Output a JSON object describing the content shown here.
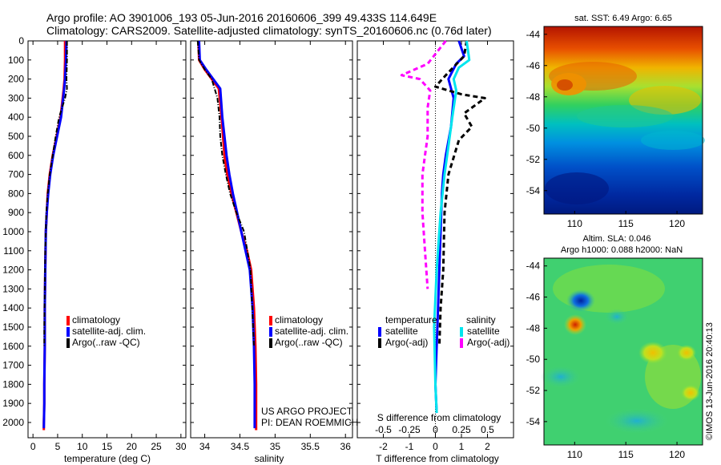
{
  "header": {
    "line1": "Argo profile: AO 3901006_193 05-Jun-2016 20160606_399 49.433S 114.649E",
    "line2": "Climatology: CARS2009. Satellite-adjusted climatology: synTS_20160606.nc (0.76d later)"
  },
  "colors": {
    "climatology": "#ff0000",
    "satellite": "#0000ff",
    "argo": "#000000",
    "s_satellite": "#00e5ee",
    "s_argo": "#ff00ff"
  },
  "chart_data": [
    {
      "type": "line",
      "id": "temperature",
      "xlabel": "temperature (deg C)",
      "ylabel": "",
      "xlim": [
        -1,
        31
      ],
      "ylim": [
        2080,
        0
      ],
      "xticks": [
        "0",
        "5",
        "10",
        "15",
        "20",
        "25",
        "30"
      ],
      "yticks": [
        "0",
        "100",
        "200",
        "300",
        "400",
        "500",
        "600",
        "700",
        "800",
        "900",
        "1000",
        "1100",
        "1200",
        "1300",
        "1400",
        "1500",
        "1600",
        "1700",
        "1800",
        "1900",
        "2000"
      ],
      "legend": [
        "climatology",
        "satellite-adj. clim.",
        "Argo(..raw -QC)"
      ],
      "series": [
        {
          "name": "climatology",
          "style": "solid",
          "x": [
            6.5,
            6.5,
            6.4,
            6.2,
            5.6,
            4.8,
            4.0,
            3.4,
            3.0,
            2.8,
            2.6,
            2.5,
            2.4,
            2.4,
            2.3,
            2.3,
            2.2,
            2.2
          ],
          "y": [
            0,
            100,
            200,
            260,
            400,
            500,
            600,
            700,
            800,
            900,
            1000,
            1200,
            1400,
            1600,
            1800,
            1900,
            2000,
            2040
          ]
        },
        {
          "name": "satellite-adj. clim.",
          "style": "solid",
          "x": [
            6.8,
            6.7,
            6.5,
            6.3,
            5.7,
            4.9,
            4.1,
            3.5,
            3.1,
            2.8,
            2.6,
            2.5,
            2.4,
            2.4,
            2.3,
            2.3,
            2.2
          ],
          "y": [
            0,
            100,
            200,
            260,
            400,
            500,
            600,
            700,
            800,
            900,
            1000,
            1200,
            1400,
            1600,
            1800,
            1900,
            2030
          ]
        },
        {
          "name": "Argo(..raw -QC)",
          "style": "dashdot",
          "x": [
            6.9,
            6.9,
            6.8,
            6.9,
            6.5,
            5.3,
            4.6,
            4.0,
            3.4,
            3.0,
            2.7,
            2.5,
            2.4,
            2.3,
            2.3
          ],
          "y": [
            0,
            100,
            200,
            250,
            300,
            400,
            500,
            600,
            700,
            800,
            900,
            1100,
            1300,
            1500,
            1600
          ]
        }
      ]
    },
    {
      "type": "line",
      "id": "salinity",
      "xlabel": "salinity",
      "ylabel": "",
      "xlim": [
        33.8,
        36.1
      ],
      "ylim": [
        2080,
        0
      ],
      "xticks": [
        "34",
        "34.5",
        "35",
        "35.5",
        "36"
      ],
      "legend": [
        "climatology",
        "satellite-adj. clim.",
        "Argo(..raw -QC)"
      ],
      "series": [
        {
          "name": "climatology",
          "style": "solid",
          "x": [
            33.91,
            33.92,
            34.0,
            34.2,
            34.24,
            34.26,
            34.28,
            34.32,
            34.38,
            34.45,
            34.52,
            34.6,
            34.66,
            34.7,
            34.72,
            34.73,
            34.73
          ],
          "y": [
            0,
            100,
            150,
            250,
            400,
            500,
            600,
            700,
            800,
            900,
            1000,
            1100,
            1200,
            1400,
            1600,
            1800,
            2040
          ]
        },
        {
          "name": "satellite-adj. clim.",
          "style": "solid",
          "x": [
            33.92,
            33.93,
            34.02,
            34.22,
            34.25,
            34.28,
            34.31,
            34.35,
            34.4,
            34.46,
            34.52,
            34.58,
            34.64,
            34.68,
            34.7,
            34.71,
            34.71
          ],
          "y": [
            0,
            100,
            150,
            250,
            400,
            500,
            600,
            700,
            800,
            900,
            1000,
            1100,
            1200,
            1400,
            1600,
            1800,
            2030
          ]
        },
        {
          "name": "Argo(..raw -QC)",
          "style": "dashdot",
          "x": [
            33.9,
            33.92,
            34.0,
            34.1,
            34.18,
            34.21,
            34.22,
            34.25,
            34.3,
            34.36,
            34.45,
            34.56,
            34.65,
            34.7
          ],
          "y": [
            0,
            100,
            150,
            200,
            300,
            400,
            500,
            600,
            700,
            800,
            900,
            1000,
            1200,
            1600
          ]
        }
      ]
    },
    {
      "type": "line",
      "id": "difference",
      "xlabel": "T difference from climatology",
      "xlabel2": "S difference from climatology",
      "xlim": [
        -3,
        3
      ],
      "ylim": [
        2080,
        0
      ],
      "xticks": [
        "-2",
        "-1",
        "0",
        "1",
        "2"
      ],
      "xticks_top": [
        "-0.5",
        "-0.25",
        "0",
        "0.25",
        "0.5"
      ],
      "legend_title_left": "temperature",
      "legend_title_right": "salinity",
      "legend": [
        "satellite",
        "Argo(-adj)",
        "satellite",
        "Argo(-adj)"
      ],
      "series": [
        {
          "name": "T satellite",
          "style": "solid",
          "x": [
            0.9,
            1.1,
            0.8,
            0.5,
            0.7,
            0.6,
            0.4,
            0.3,
            0.25,
            0.2,
            0.15,
            0.1,
            0.05,
            0.0,
            0.05
          ],
          "y": [
            0,
            80,
            120,
            200,
            300,
            450,
            600,
            700,
            800,
            1000,
            1200,
            1400,
            1600,
            1800,
            1950
          ]
        },
        {
          "name": "T Argo(-adj)",
          "style": "dashed",
          "x": [
            1.2,
            1.1,
            0.4,
            0.0,
            1.0,
            1.9,
            1.1,
            1.4,
            0.9,
            0.5,
            0.35,
            0.3,
            0.2,
            0.15
          ],
          "y": [
            0,
            80,
            180,
            240,
            280,
            300,
            380,
            450,
            520,
            700,
            900,
            1200,
            1400,
            1600
          ]
        },
        {
          "name": "S satellite",
          "style": "solid",
          "x": [
            1.2,
            1.3,
            0.9,
            0.7,
            0.8,
            0.65,
            0.5,
            0.35,
            0.2,
            0.05,
            -0.05,
            0.0,
            0.05
          ],
          "y": [
            0,
            100,
            140,
            200,
            260,
            400,
            550,
            700,
            900,
            1200,
            1500,
            1800,
            1950
          ]
        },
        {
          "name": "S Argo(-adj)",
          "style": "dashed",
          "x": [
            0.4,
            -0.3,
            -1.3,
            -0.6,
            -0.2,
            -0.3,
            -0.3,
            -0.4,
            -0.5,
            -0.5,
            -0.4,
            -0.3
          ],
          "y": [
            0,
            120,
            180,
            200,
            260,
            350,
            500,
            600,
            700,
            900,
            1100,
            1300
          ]
        }
      ]
    },
    {
      "type": "heatmap",
      "id": "sst_map",
      "title": "sat. SST: 6.49 Argo: 6.65",
      "xlim": [
        107,
        122.5
      ],
      "ylim": [
        -55.5,
        -43.5
      ],
      "xticks": [
        "110",
        "115",
        "120"
      ],
      "yticks": [
        "-44",
        "-46",
        "-48",
        "-50",
        "-52",
        "-54"
      ]
    },
    {
      "type": "heatmap",
      "id": "sla_map",
      "title": "Altim. SLA: 0.046",
      "subtitle": "Argo h1000: 0.088 h2000: NaN",
      "xlim": [
        107,
        122.5
      ],
      "ylim": [
        -55.5,
        -43.5
      ],
      "xticks": [
        "110",
        "115",
        "120"
      ],
      "yticks": [
        "-44",
        "-46",
        "-48",
        "-50",
        "-52",
        "-54"
      ]
    }
  ],
  "annotations": {
    "project_line1": "US ARGO PROJECT",
    "project_line2": "PI: DEAN ROEMMICH",
    "stamp": "©IMOS 13-Jun-2016 20:40:13"
  }
}
